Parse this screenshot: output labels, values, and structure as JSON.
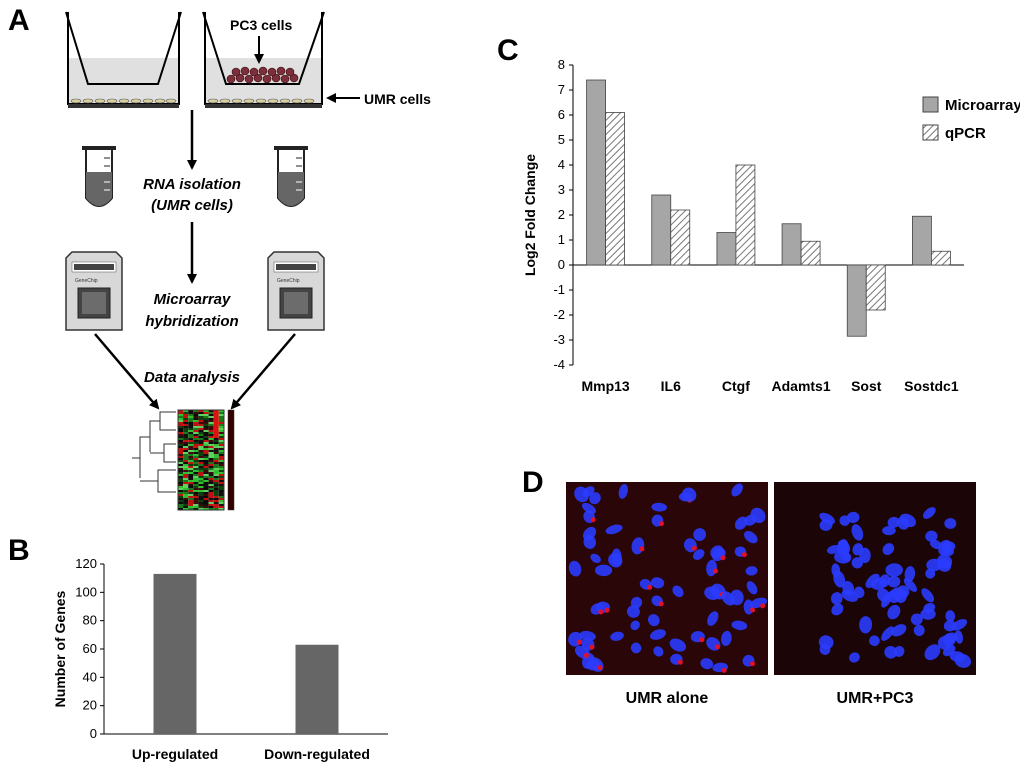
{
  "panels": {
    "a": "A",
    "b": "B",
    "c": "C",
    "d": "D"
  },
  "panel_a": {
    "pc3_label": "PC3 cells",
    "umr_label": "UMR cells",
    "step1_line1": "RNA isolation",
    "step1_line2": "(UMR cells)",
    "step2_line1": "Microarray",
    "step2_line2": "hybridization",
    "step3": "Data analysis",
    "chip_brand": "GeneChip"
  },
  "panel_d": {
    "left_caption": "UMR alone",
    "right_caption": "UMR+PC3"
  },
  "colors": {
    "microarray_fill": "#a6a6a6",
    "bar_b": "#666666",
    "nucleus": "#2a3cff",
    "stain": "#e0102a"
  },
  "chart_data": [
    {
      "id": "B",
      "type": "bar",
      "categories": [
        "Up-regulated",
        "Down-regulated"
      ],
      "values": [
        113,
        63
      ],
      "ylabel": "Number of Genes",
      "ylim": [
        0,
        120
      ],
      "yticks": [
        0,
        20,
        40,
        60,
        80,
        100,
        120
      ]
    },
    {
      "id": "C",
      "type": "bar",
      "categories": [
        "Mmp13",
        "IL6",
        "Ctgf",
        "Adamts1",
        "Sost",
        "Sostdc1"
      ],
      "series": [
        {
          "name": "Microarray",
          "values": [
            7.4,
            2.8,
            1.3,
            1.65,
            -2.85,
            1.95
          ]
        },
        {
          "name": "qPCR",
          "values": [
            6.1,
            2.2,
            4.0,
            0.95,
            -1.8,
            0.55
          ]
        }
      ],
      "ylabel": "Log2 Fold Change",
      "ylim": [
        -4,
        8
      ],
      "yticks": [
        -4,
        -3,
        -2,
        -1,
        0,
        1,
        2,
        3,
        4,
        5,
        6,
        7,
        8
      ],
      "legend": "top-right"
    }
  ]
}
